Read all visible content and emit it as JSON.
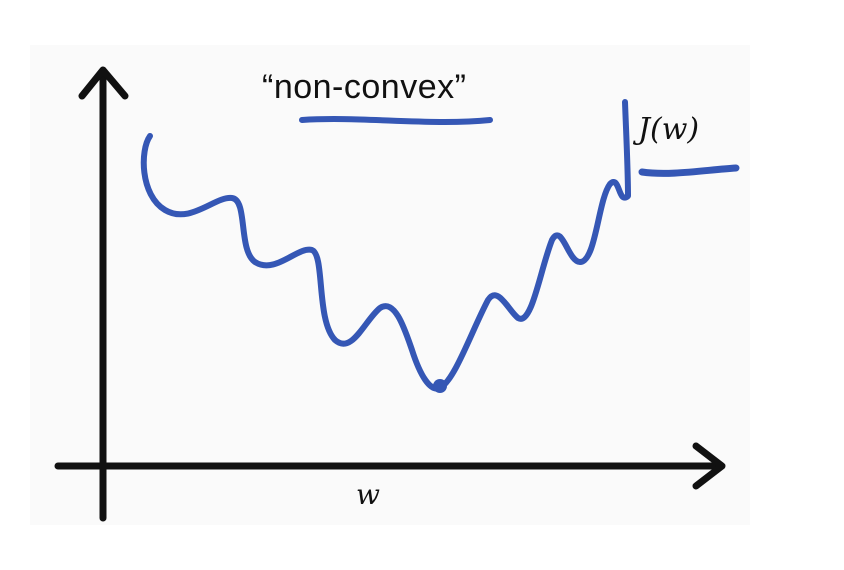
{
  "title": "“non-convex”",
  "function_label": "J(w)",
  "x_axis_label": "w",
  "colors": {
    "ink": "#111111",
    "curve": "#3557b5"
  }
}
